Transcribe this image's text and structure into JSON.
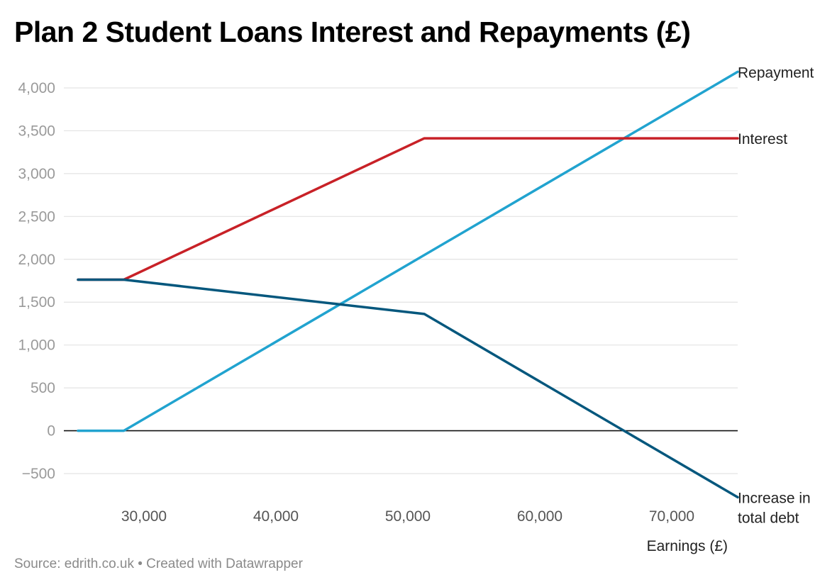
{
  "title": "Plan 2 Student Loans Interest and Repayments (£)",
  "source": "Source: edrith.co.uk • Created with Datawrapper",
  "chart_data": {
    "type": "line",
    "title": "Plan 2 Student Loans Interest and Repayments (£)",
    "xlabel": "Earnings (£)",
    "ylabel": "",
    "xlim": [
      25000,
      75000
    ],
    "ylim": [
      -500,
      4000
    ],
    "x_ticks": [
      30000,
      40000,
      50000,
      60000,
      70000
    ],
    "x_tick_labels": [
      "30,000",
      "40,000",
      "50,000",
      "60,000",
      "70,000"
    ],
    "y_ticks": [
      -500,
      0,
      500,
      1000,
      1500,
      2000,
      2500,
      3000,
      3500,
      4000
    ],
    "y_tick_labels": [
      "−500",
      "0",
      "500",
      "1,000",
      "1,500",
      "2,000",
      "2,500",
      "3,000",
      "3,500",
      "4,000"
    ],
    "grid": true,
    "legend": "direct labels at line ends (right)",
    "series": [
      {
        "name": "Repayment",
        "label_lines": [
          "Repayment"
        ],
        "color": "#21a3cf",
        "points": [
          [
            25000,
            0
          ],
          [
            28470,
            0
          ],
          [
            75000,
            4188
          ]
        ]
      },
      {
        "name": "Interest",
        "label_lines": [
          "Interest"
        ],
        "color": "#c82127",
        "points": [
          [
            25000,
            1762
          ],
          [
            28470,
            1762
          ],
          [
            51245,
            3412
          ],
          [
            75000,
            3412
          ]
        ]
      },
      {
        "name": "Increase in total debt",
        "label_lines": [
          "Increase in",
          "total debt"
        ],
        "color": "#04577d",
        "points": [
          [
            25000,
            1762
          ],
          [
            28470,
            1762
          ],
          [
            51245,
            1362
          ],
          [
            75000,
            -776
          ]
        ]
      }
    ]
  }
}
